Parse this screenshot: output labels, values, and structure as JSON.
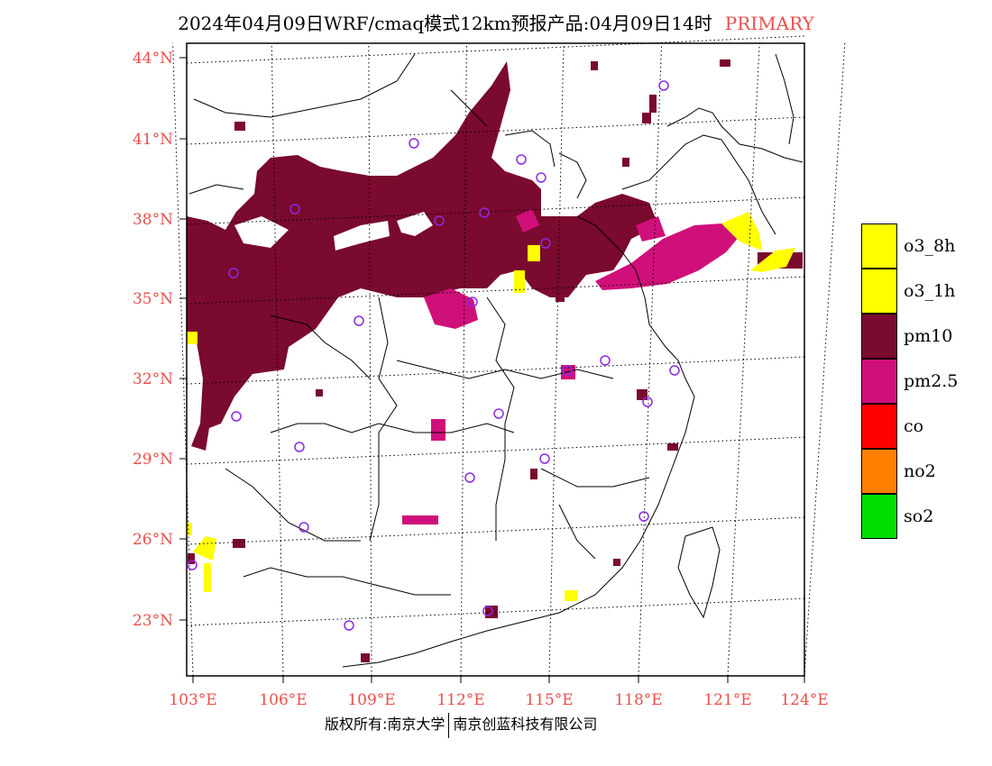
{
  "header": {
    "title": "2024年04月09日WRF/cmaq模式12km预报产品:04月09日14时",
    "tag": "PRIMARY"
  },
  "map": {
    "lat_labels": [
      "44°N",
      "41°N",
      "38°N",
      "35°N",
      "32°N",
      "29°N",
      "26°N",
      "23°N"
    ],
    "lon_labels": [
      "103°E",
      "106°E",
      "109°E",
      "112°E",
      "115°E",
      "118°E",
      "121°E",
      "124°E"
    ],
    "label_color": "#e8504a",
    "extent": {
      "lon": [
        102.8,
        124.0
      ],
      "lat": [
        21.2,
        44.5
      ]
    },
    "station_marker_icon": "circle-icon",
    "station_color": "#8a2be2"
  },
  "legend": {
    "items": [
      {
        "label": "o3_8h",
        "color": "#ffff00"
      },
      {
        "label": "o3_1h",
        "color": "#ffff00"
      },
      {
        "label": "pm10",
        "color": "#7a0a2e"
      },
      {
        "label": "pm2.5",
        "color": "#d0107a"
      },
      {
        "label": "co",
        "color": "#ff0000"
      },
      {
        "label": "no2",
        "color": "#ff7f00"
      },
      {
        "label": "so2",
        "color": "#00dd00"
      }
    ]
  },
  "footer": {
    "left": "版权所有:南京大学",
    "right": "南京创蓝科技有限公司"
  }
}
